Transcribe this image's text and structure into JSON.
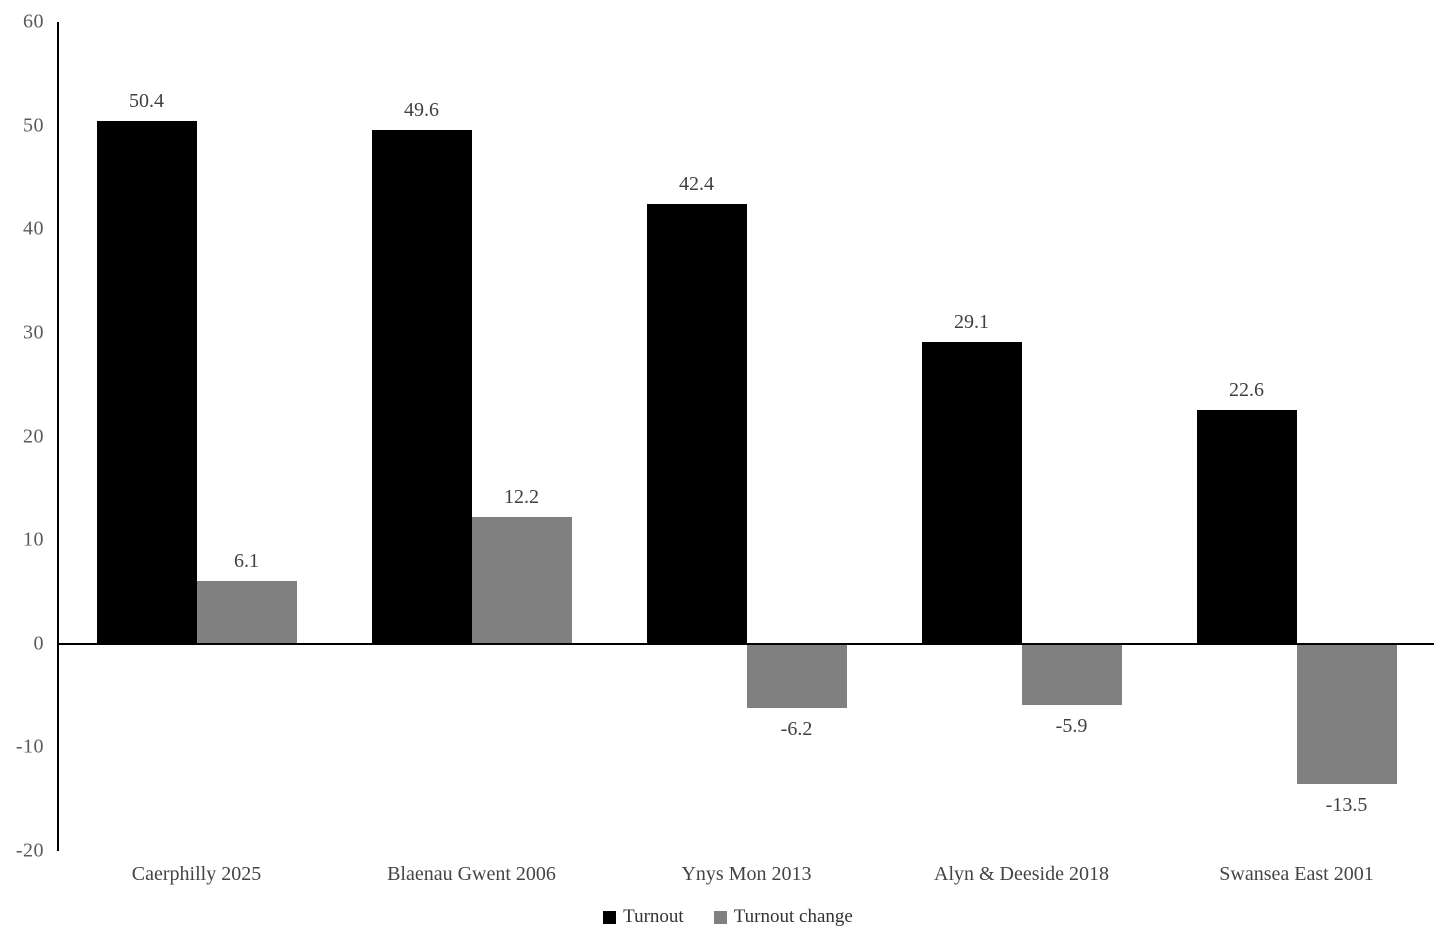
{
  "chart_data": {
    "type": "bar",
    "title": "",
    "xlabel": "",
    "ylabel": "",
    "categories": [
      "Caerphilly 2025",
      "Blaenau Gwent 2006",
      "Ynys Mon 2013",
      "Alyn & Deeside 2018",
      "Swansea East 2001"
    ],
    "series": [
      {
        "name": "Turnout",
        "color": "#000000",
        "values": [
          50.4,
          49.6,
          42.4,
          29.1,
          22.6
        ]
      },
      {
        "name": "Turnout change",
        "color": "#808080",
        "values": [
          6.1,
          12.2,
          -6.2,
          -5.9,
          -13.5
        ]
      }
    ],
    "ylim": [
      -20,
      60
    ],
    "yticks": [
      60,
      50,
      40,
      30,
      20,
      10,
      0,
      -10,
      -20
    ],
    "grid": false,
    "data_labels": true,
    "legend_position": "bottom",
    "legend": [
      "Turnout",
      "Turnout change"
    ]
  },
  "colors": {
    "axis_line": "#000000",
    "tick_text": "#595959",
    "data_label_text": "#404040",
    "category_text": "#444444",
    "legend_text": "#333333",
    "background": "#ffffff"
  }
}
